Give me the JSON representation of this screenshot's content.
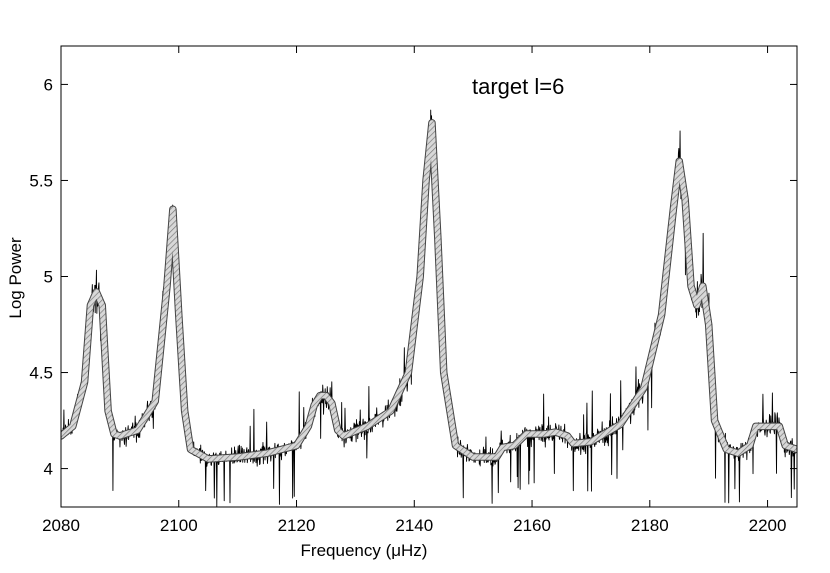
{
  "chart_data": {
    "type": "line",
    "title": "",
    "annotation": "target l=6",
    "xlabel": "Frequency (μHz)",
    "ylabel": "Log Power",
    "xlim": [
      2080,
      2205
    ],
    "ylim": [
      3.8,
      6.2
    ],
    "x_ticks": [
      2080,
      2100,
      2120,
      2140,
      2160,
      2180,
      2200
    ],
    "x_tick_labels": [
      "2080",
      "2100",
      "2120",
      "2140",
      "2160",
      "2180",
      "2200"
    ],
    "y_ticks": [
      4,
      4.5,
      5,
      5.5,
      6
    ],
    "y_tick_labels": [
      "4",
      "4.5",
      "5",
      "5.5",
      "6"
    ],
    "grid": false,
    "series": [
      {
        "role": "observed power spectrum (noisy)",
        "color": "#000000",
        "style": "thin jagged line"
      },
      {
        "role": "fitted model profile",
        "color": "#bdbdbd",
        "style": "thick hatched band",
        "x": [
          2080,
          2082,
          2084,
          2085,
          2086,
          2087,
          2088,
          2089,
          2090,
          2093,
          2096,
          2098,
          2099,
          2100,
          2101,
          2102,
          2105,
          2110,
          2115,
          2120,
          2122,
          2123,
          2124,
          2125,
          2126,
          2127,
          2128,
          2132,
          2136,
          2139,
          2141,
          2142,
          2143,
          2144,
          2145,
          2147,
          2150,
          2154,
          2155,
          2157,
          2159,
          2160,
          2162,
          2164,
          2166,
          2167,
          2170,
          2175,
          2179,
          2182,
          2184,
          2185,
          2186,
          2187,
          2188,
          2189,
          2190,
          2191,
          2193,
          2195,
          2197,
          2198,
          2200,
          2202,
          2203,
          2205
        ],
        "y": [
          4.17,
          4.22,
          4.45,
          4.85,
          4.92,
          4.85,
          4.3,
          4.18,
          4.17,
          4.2,
          4.35,
          4.95,
          5.35,
          4.8,
          4.3,
          4.1,
          4.05,
          4.06,
          4.08,
          4.12,
          4.22,
          4.33,
          4.38,
          4.38,
          4.34,
          4.2,
          4.17,
          4.22,
          4.3,
          4.5,
          5.0,
          5.5,
          5.8,
          5.2,
          4.5,
          4.12,
          4.06,
          4.06,
          4.11,
          4.12,
          4.18,
          4.18,
          4.18,
          4.19,
          4.17,
          4.13,
          4.14,
          4.23,
          4.42,
          4.8,
          5.35,
          5.6,
          5.4,
          4.95,
          4.85,
          4.95,
          4.75,
          4.25,
          4.1,
          4.08,
          4.12,
          4.22,
          4.22,
          4.22,
          4.12,
          4.1
        ]
      }
    ]
  }
}
